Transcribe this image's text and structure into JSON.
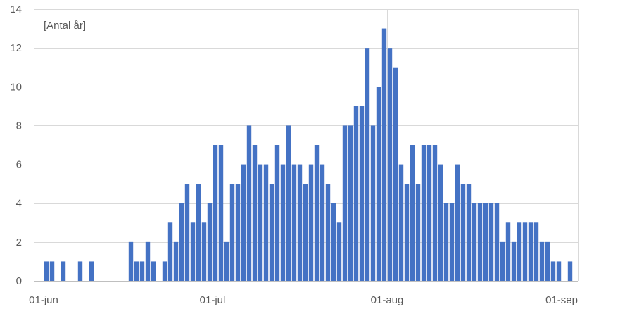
{
  "chart_data": {
    "type": "bar",
    "title": "",
    "annotation": "[Antal år]",
    "xlabel": "",
    "ylabel": "",
    "ylim": [
      0,
      14
    ],
    "y_ticks": [
      0,
      2,
      4,
      6,
      8,
      10,
      12,
      14
    ],
    "grid": true,
    "x_tick_labels": [
      {
        "label": "01-jun",
        "index": 0
      },
      {
        "label": "01-jul",
        "index": 30
      },
      {
        "label": "01-aug",
        "index": 61
      },
      {
        "label": "01-sep",
        "index": 92
      }
    ],
    "x_start": "01-jun",
    "x_end": "03-sep",
    "bar_color": "#4472C4",
    "values": [
      1,
      1,
      0,
      1,
      0,
      0,
      1,
      0,
      1,
      0,
      0,
      0,
      0,
      0,
      0,
      2,
      1,
      1,
      2,
      1,
      0,
      1,
      3,
      2,
      4,
      5,
      3,
      5,
      3,
      4,
      7,
      7,
      2,
      5,
      5,
      6,
      8,
      7,
      6,
      6,
      5,
      7,
      6,
      8,
      6,
      6,
      5,
      6,
      7,
      6,
      5,
      4,
      3,
      8,
      8,
      9,
      9,
      12,
      8,
      10,
      13,
      12,
      11,
      6,
      5,
      7,
      5,
      7,
      7,
      7,
      6,
      4,
      4,
      6,
      5,
      5,
      4,
      4,
      4,
      4,
      4,
      2,
      3,
      2,
      3,
      3,
      3,
      3,
      2,
      2,
      1,
      1,
      0,
      1
    ]
  }
}
